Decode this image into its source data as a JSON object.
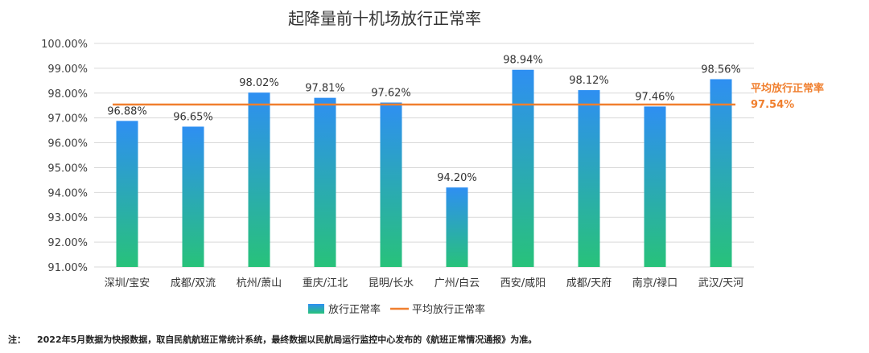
{
  "chart_data": {
    "type": "bar",
    "title": "起降量前十机场放行正常率",
    "categories": [
      "深圳/宝安",
      "成都/双流",
      "杭州/萧山",
      "重庆/江北",
      "昆明/长水",
      "广州/白云",
      "西安/咸阳",
      "成都/天府",
      "南京/禄口",
      "武汉/天河"
    ],
    "series": [
      {
        "name": "放行正常率",
        "values": [
          96.88,
          96.65,
          98.02,
          97.81,
          97.62,
          94.2,
          98.94,
          98.12,
          97.46,
          98.56
        ]
      }
    ],
    "data_labels": [
      "96.88%",
      "96.65%",
      "98.02%",
      "97.81%",
      "97.62%",
      "94.20%",
      "98.94%",
      "98.12%",
      "97.46%",
      "98.56%"
    ],
    "average": {
      "name": "平均放行正常率",
      "value": 97.54,
      "label": "97.54%"
    },
    "ylim": [
      91,
      100
    ],
    "yticks": [
      "91.00%",
      "92.00%",
      "93.00%",
      "94.00%",
      "95.00%",
      "96.00%",
      "97.00%",
      "98.00%",
      "99.00%",
      "100.00%"
    ],
    "grid": true,
    "legend_position": "bottom",
    "colors": {
      "bar_top": "#2e8ff2",
      "bar_bottom": "#28c27a",
      "average_line": "#f07f2e",
      "grid": "#d9d9d9",
      "text": "#333333"
    }
  },
  "footnote": {
    "prefix": "注：",
    "text": "2022年5月数据为快报数据，取自民航航班正常统计系统，最终数据以民航局运行监控中心发布的《航班正常情况通报》为准。"
  }
}
